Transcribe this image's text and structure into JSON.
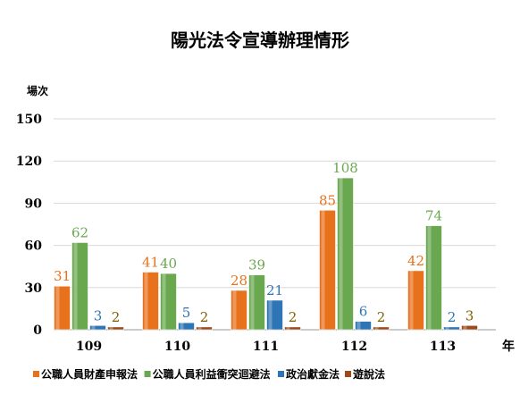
{
  "chart_data": {
    "type": "bar",
    "title": "陽光法令宣導辦理情形",
    "ylabel": "場次",
    "xlabel": "年",
    "ylim": [
      0,
      150
    ],
    "yticks": [
      0,
      30,
      60,
      90,
      120,
      150
    ],
    "categories": [
      "109",
      "110",
      "111",
      "112",
      "113"
    ],
    "series": [
      {
        "name": "公職人員財產申報法",
        "color": "#e8711c",
        "values": [
          31,
          41,
          28,
          85,
          42
        ]
      },
      {
        "name": "公職人員利益衝突迴避法",
        "color": "#6aa84f",
        "values": [
          62,
          40,
          39,
          108,
          74
        ]
      },
      {
        "name": "政治獻金法",
        "color": "#2e75b6",
        "values": [
          3,
          5,
          21,
          6,
          2
        ]
      },
      {
        "name": "遊說法",
        "color": "#9c4a18",
        "values": [
          2,
          2,
          2,
          2,
          3
        ]
      }
    ],
    "label_colors": [
      "#e8711c",
      "#6aa84f",
      "#2e75b6",
      "#7f6000"
    ],
    "grid": true,
    "legend": "bottom"
  }
}
